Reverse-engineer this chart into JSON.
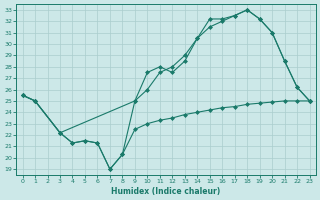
{
  "xlabel": "Humidex (Indice chaleur)",
  "background_color": "#cce8e8",
  "grid_color": "#aacece",
  "line_color": "#1a7a6a",
  "xlim": [
    -0.5,
    23.5
  ],
  "ylim": [
    18.5,
    33.5
  ],
  "xticks": [
    0,
    1,
    2,
    3,
    4,
    5,
    6,
    7,
    8,
    9,
    10,
    11,
    12,
    13,
    14,
    15,
    16,
    17,
    18,
    19,
    20,
    21,
    22,
    23
  ],
  "yticks": [
    19,
    20,
    21,
    22,
    23,
    24,
    25,
    26,
    27,
    28,
    29,
    30,
    31,
    32,
    33
  ],
  "line1_x": [
    0,
    1,
    3,
    4,
    5,
    6,
    7,
    8,
    9,
    10,
    11,
    12,
    13,
    14,
    15,
    16,
    17,
    18,
    19,
    20,
    21,
    22,
    23
  ],
  "line1_y": [
    25.5,
    25.0,
    22.2,
    21.3,
    21.5,
    21.3,
    19.0,
    20.3,
    25.0,
    27.5,
    28.0,
    27.5,
    28.5,
    30.5,
    32.2,
    32.2,
    32.5,
    33.0,
    32.2,
    31.0,
    28.5,
    26.2,
    25.0
  ],
  "line2_x": [
    0,
    1,
    3,
    9,
    10,
    11,
    12,
    13,
    14,
    15,
    16,
    17,
    18,
    19,
    20,
    21,
    22,
    23
  ],
  "line2_y": [
    25.5,
    25.0,
    22.2,
    25.0,
    26.0,
    27.5,
    28.0,
    29.0,
    30.5,
    31.5,
    32.0,
    32.5,
    33.0,
    32.2,
    31.0,
    28.5,
    26.2,
    25.0
  ],
  "line3_x": [
    0,
    1,
    3,
    4,
    5,
    6,
    7,
    8,
    9,
    10,
    11,
    12,
    13,
    14,
    15,
    16,
    17,
    18,
    19,
    20,
    21,
    22,
    23
  ],
  "line3_y": [
    25.5,
    25.0,
    22.2,
    21.3,
    21.5,
    21.3,
    19.0,
    20.3,
    22.5,
    23.0,
    23.3,
    23.5,
    23.8,
    24.0,
    24.2,
    24.4,
    24.5,
    24.7,
    24.8,
    24.9,
    25.0,
    25.0,
    25.0
  ]
}
